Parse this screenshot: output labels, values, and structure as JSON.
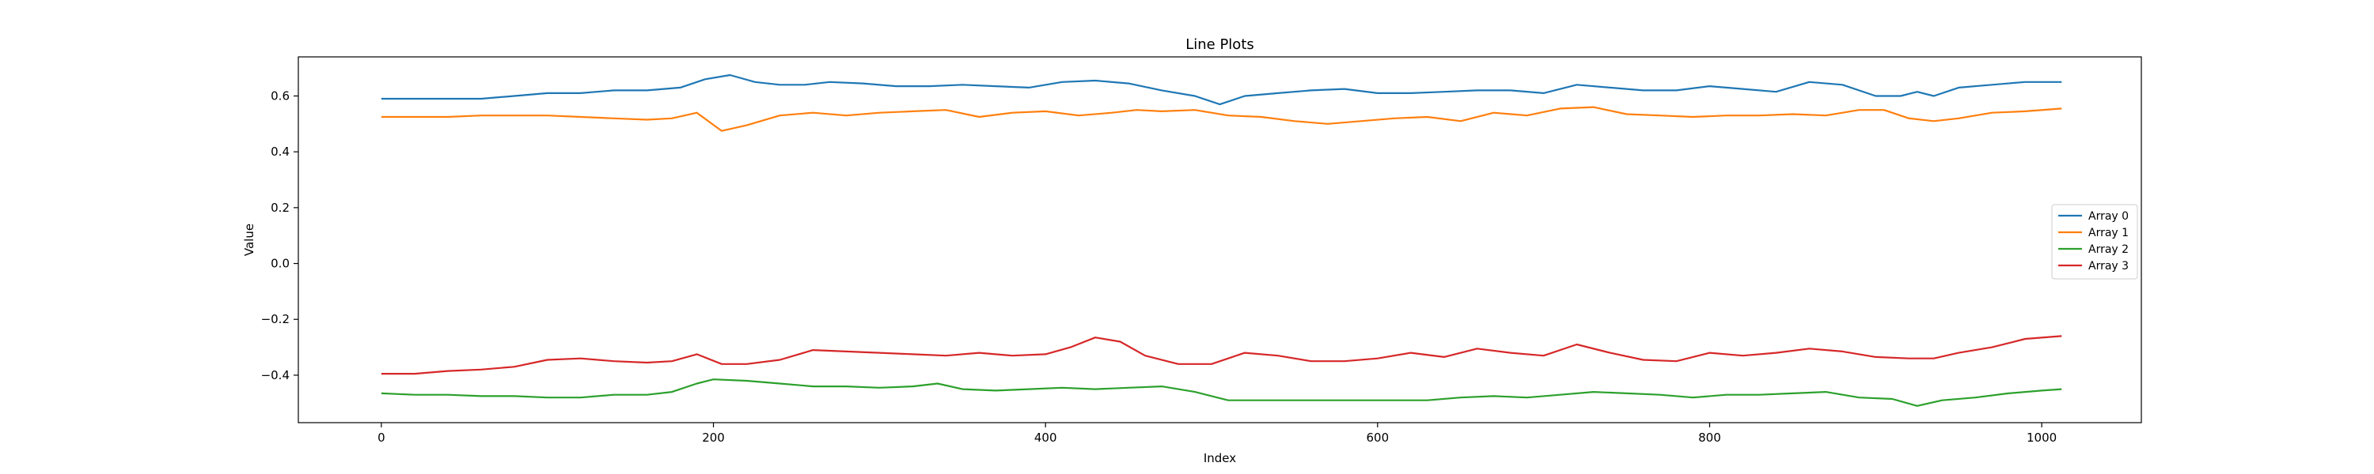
{
  "chart_data": {
    "type": "line",
    "title": "Line Plots",
    "xlabel": "Index",
    "ylabel": "Value",
    "xlim": [
      -50,
      1060
    ],
    "ylim": [
      -0.57,
      0.74
    ],
    "x_ticks": [
      0,
      200,
      400,
      600,
      800,
      1000
    ],
    "x_tick_labels": [
      "0",
      "200",
      "400",
      "600",
      "800",
      "1000"
    ],
    "y_ticks": [
      -0.4,
      -0.2,
      0.0,
      0.2,
      0.4,
      0.6
    ],
    "y_tick_labels": [
      "−0.4",
      "−0.2",
      "0.0",
      "0.2",
      "0.4",
      "0.6"
    ],
    "grid": false,
    "legend_position": "center-right",
    "series": [
      {
        "name": "Array 0",
        "color": "#1f77b4",
        "points": [
          [
            0,
            0.59
          ],
          [
            20,
            0.59
          ],
          [
            40,
            0.59
          ],
          [
            60,
            0.59
          ],
          [
            80,
            0.6
          ],
          [
            100,
            0.61
          ],
          [
            120,
            0.61
          ],
          [
            140,
            0.62
          ],
          [
            160,
            0.62
          ],
          [
            180,
            0.63
          ],
          [
            195,
            0.66
          ],
          [
            210,
            0.675
          ],
          [
            225,
            0.65
          ],
          [
            240,
            0.64
          ],
          [
            255,
            0.64
          ],
          [
            270,
            0.65
          ],
          [
            290,
            0.645
          ],
          [
            310,
            0.635
          ],
          [
            330,
            0.635
          ],
          [
            350,
            0.64
          ],
          [
            370,
            0.635
          ],
          [
            390,
            0.63
          ],
          [
            410,
            0.65
          ],
          [
            430,
            0.655
          ],
          [
            450,
            0.645
          ],
          [
            470,
            0.62
          ],
          [
            490,
            0.6
          ],
          [
            505,
            0.57
          ],
          [
            520,
            0.6
          ],
          [
            540,
            0.61
          ],
          [
            560,
            0.62
          ],
          [
            580,
            0.625
          ],
          [
            600,
            0.61
          ],
          [
            620,
            0.61
          ],
          [
            640,
            0.615
          ],
          [
            660,
            0.62
          ],
          [
            680,
            0.62
          ],
          [
            700,
            0.61
          ],
          [
            720,
            0.64
          ],
          [
            740,
            0.63
          ],
          [
            760,
            0.62
          ],
          [
            780,
            0.62
          ],
          [
            800,
            0.635
          ],
          [
            820,
            0.625
          ],
          [
            840,
            0.615
          ],
          [
            860,
            0.65
          ],
          [
            880,
            0.64
          ],
          [
            900,
            0.6
          ],
          [
            915,
            0.6
          ],
          [
            925,
            0.615
          ],
          [
            935,
            0.6
          ],
          [
            950,
            0.63
          ],
          [
            970,
            0.64
          ],
          [
            990,
            0.65
          ],
          [
            1012,
            0.65
          ]
        ]
      },
      {
        "name": "Array 1",
        "color": "#ff7f0e",
        "points": [
          [
            0,
            0.525
          ],
          [
            20,
            0.525
          ],
          [
            40,
            0.525
          ],
          [
            60,
            0.53
          ],
          [
            80,
            0.53
          ],
          [
            100,
            0.53
          ],
          [
            120,
            0.525
          ],
          [
            140,
            0.52
          ],
          [
            160,
            0.515
          ],
          [
            175,
            0.52
          ],
          [
            190,
            0.54
          ],
          [
            205,
            0.475
          ],
          [
            220,
            0.495
          ],
          [
            240,
            0.53
          ],
          [
            260,
            0.54
          ],
          [
            280,
            0.53
          ],
          [
            300,
            0.54
          ],
          [
            320,
            0.545
          ],
          [
            340,
            0.55
          ],
          [
            360,
            0.525
          ],
          [
            380,
            0.54
          ],
          [
            400,
            0.545
          ],
          [
            420,
            0.53
          ],
          [
            440,
            0.54
          ],
          [
            455,
            0.55
          ],
          [
            470,
            0.545
          ],
          [
            490,
            0.55
          ],
          [
            510,
            0.53
          ],
          [
            530,
            0.525
          ],
          [
            550,
            0.51
          ],
          [
            570,
            0.5
          ],
          [
            590,
            0.51
          ],
          [
            610,
            0.52
          ],
          [
            630,
            0.525
          ],
          [
            650,
            0.51
          ],
          [
            670,
            0.54
          ],
          [
            690,
            0.53
          ],
          [
            710,
            0.555
          ],
          [
            730,
            0.56
          ],
          [
            750,
            0.535
          ],
          [
            770,
            0.53
          ],
          [
            790,
            0.525
          ],
          [
            810,
            0.53
          ],
          [
            830,
            0.53
          ],
          [
            850,
            0.535
          ],
          [
            870,
            0.53
          ],
          [
            890,
            0.55
          ],
          [
            905,
            0.55
          ],
          [
            920,
            0.52
          ],
          [
            935,
            0.51
          ],
          [
            950,
            0.52
          ],
          [
            970,
            0.54
          ],
          [
            990,
            0.545
          ],
          [
            1012,
            0.555
          ]
        ]
      },
      {
        "name": "Array 2",
        "color": "#2ca02c",
        "points": [
          [
            0,
            -0.465
          ],
          [
            20,
            -0.47
          ],
          [
            40,
            -0.47
          ],
          [
            60,
            -0.475
          ],
          [
            80,
            -0.475
          ],
          [
            100,
            -0.48
          ],
          [
            120,
            -0.48
          ],
          [
            140,
            -0.47
          ],
          [
            160,
            -0.47
          ],
          [
            175,
            -0.46
          ],
          [
            190,
            -0.43
          ],
          [
            200,
            -0.415
          ],
          [
            220,
            -0.42
          ],
          [
            240,
            -0.43
          ],
          [
            260,
            -0.44
          ],
          [
            280,
            -0.44
          ],
          [
            300,
            -0.445
          ],
          [
            320,
            -0.44
          ],
          [
            335,
            -0.43
          ],
          [
            350,
            -0.45
          ],
          [
            370,
            -0.455
          ],
          [
            390,
            -0.45
          ],
          [
            410,
            -0.445
          ],
          [
            430,
            -0.45
          ],
          [
            450,
            -0.445
          ],
          [
            470,
            -0.44
          ],
          [
            490,
            -0.46
          ],
          [
            510,
            -0.49
          ],
          [
            530,
            -0.49
          ],
          [
            550,
            -0.49
          ],
          [
            570,
            -0.49
          ],
          [
            590,
            -0.49
          ],
          [
            610,
            -0.49
          ],
          [
            630,
            -0.49
          ],
          [
            650,
            -0.48
          ],
          [
            670,
            -0.475
          ],
          [
            690,
            -0.48
          ],
          [
            710,
            -0.47
          ],
          [
            730,
            -0.46
          ],
          [
            750,
            -0.465
          ],
          [
            770,
            -0.47
          ],
          [
            790,
            -0.48
          ],
          [
            810,
            -0.47
          ],
          [
            830,
            -0.47
          ],
          [
            850,
            -0.465
          ],
          [
            870,
            -0.46
          ],
          [
            890,
            -0.48
          ],
          [
            910,
            -0.485
          ],
          [
            925,
            -0.51
          ],
          [
            940,
            -0.49
          ],
          [
            960,
            -0.48
          ],
          [
            980,
            -0.465
          ],
          [
            1000,
            -0.455
          ],
          [
            1012,
            -0.45
          ]
        ]
      },
      {
        "name": "Array 3",
        "color": "#d62728",
        "points": [
          [
            0,
            -0.395
          ],
          [
            20,
            -0.395
          ],
          [
            40,
            -0.385
          ],
          [
            60,
            -0.38
          ],
          [
            80,
            -0.37
          ],
          [
            100,
            -0.345
          ],
          [
            120,
            -0.34
          ],
          [
            140,
            -0.35
          ],
          [
            160,
            -0.355
          ],
          [
            175,
            -0.35
          ],
          [
            190,
            -0.325
          ],
          [
            205,
            -0.36
          ],
          [
            220,
            -0.36
          ],
          [
            240,
            -0.345
          ],
          [
            260,
            -0.31
          ],
          [
            280,
            -0.315
          ],
          [
            300,
            -0.32
          ],
          [
            320,
            -0.325
          ],
          [
            340,
            -0.33
          ],
          [
            360,
            -0.32
          ],
          [
            380,
            -0.33
          ],
          [
            400,
            -0.325
          ],
          [
            415,
            -0.3
          ],
          [
            430,
            -0.265
          ],
          [
            445,
            -0.28
          ],
          [
            460,
            -0.33
          ],
          [
            480,
            -0.36
          ],
          [
            500,
            -0.36
          ],
          [
            520,
            -0.32
          ],
          [
            540,
            -0.33
          ],
          [
            560,
            -0.35
          ],
          [
            580,
            -0.35
          ],
          [
            600,
            -0.34
          ],
          [
            620,
            -0.32
          ],
          [
            640,
            -0.335
          ],
          [
            660,
            -0.305
          ],
          [
            680,
            -0.32
          ],
          [
            700,
            -0.33
          ],
          [
            720,
            -0.29
          ],
          [
            740,
            -0.32
          ],
          [
            760,
            -0.345
          ],
          [
            780,
            -0.35
          ],
          [
            800,
            -0.32
          ],
          [
            820,
            -0.33
          ],
          [
            840,
            -0.32
          ],
          [
            860,
            -0.305
          ],
          [
            880,
            -0.315
          ],
          [
            900,
            -0.335
          ],
          [
            920,
            -0.34
          ],
          [
            935,
            -0.34
          ],
          [
            950,
            -0.32
          ],
          [
            970,
            -0.3
          ],
          [
            990,
            -0.27
          ],
          [
            1012,
            -0.26
          ]
        ]
      }
    ]
  }
}
